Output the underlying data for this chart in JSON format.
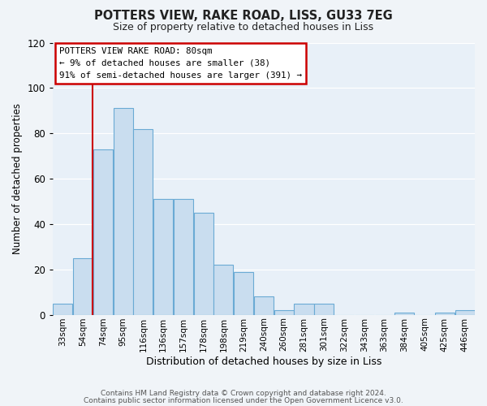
{
  "title": "POTTERS VIEW, RAKE ROAD, LISS, GU33 7EG",
  "subtitle": "Size of property relative to detached houses in Liss",
  "xlabel": "Distribution of detached houses by size in Liss",
  "ylabel": "Number of detached properties",
  "bar_labels": [
    "33sqm",
    "54sqm",
    "74sqm",
    "95sqm",
    "116sqm",
    "136sqm",
    "157sqm",
    "178sqm",
    "198sqm",
    "219sqm",
    "240sqm",
    "260sqm",
    "281sqm",
    "301sqm",
    "322sqm",
    "343sqm",
    "363sqm",
    "384sqm",
    "405sqm",
    "425sqm",
    "446sqm"
  ],
  "bar_values": [
    5,
    25,
    73,
    91,
    82,
    51,
    51,
    45,
    22,
    19,
    8,
    2,
    5,
    5,
    0,
    0,
    0,
    1,
    0,
    1,
    2
  ],
  "bar_color": "#c9ddef",
  "bar_edge_color": "#6aaad4",
  "ylim": [
    0,
    120
  ],
  "yticks": [
    0,
    20,
    40,
    60,
    80,
    100,
    120
  ],
  "vline_color": "#cc0000",
  "annotation_title": "POTTERS VIEW RAKE ROAD: 80sqm",
  "annotation_line1": "← 9% of detached houses are smaller (38)",
  "annotation_line2": "91% of semi-detached houses are larger (391) →",
  "annotation_box_color": "#ffffff",
  "annotation_box_edge": "#cc0000",
  "footer1": "Contains HM Land Registry data © Crown copyright and database right 2024.",
  "footer2": "Contains public sector information licensed under the Open Government Licence v3.0.",
  "fig_bg_color": "#f0f4f8",
  "plot_bg_color": "#e8f0f8"
}
